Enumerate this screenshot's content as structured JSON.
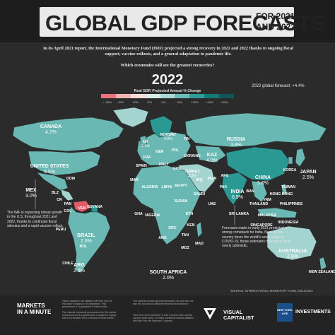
{
  "header": {
    "title": "GLOBAL GDP FORECASTS",
    "subtitle_line1": "FOR 2021",
    "subtitle_line2": "AND 2022"
  },
  "intro": "In its April 2021 report, the International Monetary Fund (IMF) projected a strong recovery in 2021 and 2022 thanks to ongoing fiscal support, vaccine rollouts, and a general adaptation to pandemic life.",
  "question": "Which economies will see the greatest recoveries?",
  "year": "2022",
  "global_forecast": "2022 global forecast: +4.4%",
  "legend": {
    "title": "Real GDP, Projected Annual % Change",
    "colors": [
      "#e8747d",
      "#f2b3b3",
      "#f7dcd8",
      "#d9ecea",
      "#a9d7d3",
      "#6cbdb8",
      "#2f9e99",
      "#157a76",
      "#0e5957"
    ],
    "labels": [
      "< -20%",
      "-15%",
      "-10%",
      "-5%",
      "0%",
      "+5%",
      "+10%",
      "+15%",
      "+20%"
    ]
  },
  "colors": {
    "ocean": "#2b2b2b",
    "land_default": "#6ab8b3",
    "land_strong": "#2a9893",
    "land_weak": "#a3d4d0",
    "negative": "#e45a66"
  },
  "countries": [
    {
      "name": "CANADA",
      "value": "4.7%",
      "size": "big"
    },
    {
      "name": "UNITED STATES",
      "value": "3.5%",
      "size": "big"
    },
    {
      "name": "MEX",
      "value": "3.0%",
      "size": "big"
    },
    {
      "name": "BRAZIL",
      "value": "2.6%",
      "size": "big"
    },
    {
      "name": "ARG",
      "value": "2.5%",
      "size": "big"
    },
    {
      "name": "RUSSIA",
      "value": "3.8%",
      "size": "big"
    },
    {
      "name": "KAZ",
      "value": "4.0%",
      "size": "big"
    },
    {
      "name": "CHINA",
      "value": "5.6%",
      "size": "big"
    },
    {
      "name": "INDIA",
      "value": "6.9%",
      "size": "big"
    },
    {
      "name": "JAPAN",
      "value": "2.5%",
      "size": "big"
    },
    {
      "name": "AUSTRALIA",
      "value": "2.8%",
      "size": "big"
    },
    {
      "name": "SOUTH AFRICA",
      "value": "2.0%",
      "size": "big"
    },
    {
      "name": "UK",
      "value": "5.1%",
      "size": "small"
    },
    {
      "name": "NORWAY",
      "value": "4.0%",
      "size": "small"
    },
    {
      "name": "FIN",
      "value": "",
      "size": "small"
    },
    {
      "name": "GER",
      "value": "",
      "size": "small"
    },
    {
      "name": "POL",
      "value": "",
      "size": "small"
    },
    {
      "name": "FRA",
      "value": "",
      "size": "small"
    },
    {
      "name": "UKRAINE",
      "value": "",
      "size": "small"
    },
    {
      "name": "ITALY",
      "value": "",
      "size": "small"
    },
    {
      "name": "SPAIN",
      "value": "",
      "size": "small"
    },
    {
      "name": "GRE",
      "value": "",
      "size": "small"
    },
    {
      "name": "TURKEY",
      "value": "3.3%",
      "size": "small"
    },
    {
      "name": "MAR",
      "value": "",
      "size": "small"
    },
    {
      "name": "ALGERIA",
      "value": "",
      "size": "small"
    },
    {
      "name": "LIBYA",
      "value": "",
      "size": "small"
    },
    {
      "name": "EGYPT",
      "value": "",
      "size": "small"
    },
    {
      "name": "IRAN",
      "value": "",
      "size": "small"
    },
    {
      "name": "IRQ",
      "value": "",
      "size": "small"
    },
    {
      "name": "SAUDI",
      "value": "",
      "size": "small"
    },
    {
      "name": "AFG",
      "value": "",
      "size": "small"
    },
    {
      "name": "PAK",
      "value": "",
      "size": "small"
    },
    {
      "name": "SUDAN",
      "value": "",
      "size": "small"
    },
    {
      "name": "NIGERIA",
      "value": "",
      "size": "small"
    },
    {
      "name": "GHA",
      "value": "",
      "size": "small"
    },
    {
      "name": "ETH",
      "value": "",
      "size": "small"
    },
    {
      "name": "KEN",
      "value": "",
      "size": "small"
    },
    {
      "name": "DRC",
      "value": "",
      "size": "small"
    },
    {
      "name": "ANG",
      "value": "",
      "size": "small"
    },
    {
      "name": "TAN",
      "value": "",
      "size": "small"
    },
    {
      "name": "MOZ",
      "value": "",
      "size": "small"
    },
    {
      "name": "MAD",
      "value": "",
      "size": "small"
    },
    {
      "name": "UAE",
      "value": "",
      "size": "small"
    },
    {
      "name": "SRI LANKA",
      "value": "",
      "size": "small"
    },
    {
      "name": "BAN",
      "value": "",
      "size": "small"
    },
    {
      "name": "THAILAND",
      "value": "",
      "size": "small"
    },
    {
      "name": "VNM",
      "value": "",
      "size": "small"
    },
    {
      "name": "KOREA",
      "value": "",
      "size": "small"
    },
    {
      "name": "TAIWAN",
      "value": "",
      "size": "small"
    },
    {
      "name": "HONG KONG",
      "value": "",
      "size": "small"
    },
    {
      "name": "PHILIPPINES",
      "value": "",
      "size": "small"
    },
    {
      "name": "MALAYSIA",
      "value": "",
      "size": "small"
    },
    {
      "name": "SINGAPORE",
      "value": "",
      "size": "small"
    },
    {
      "name": "INDONESIA",
      "value": "",
      "size": "small"
    },
    {
      "name": "NEW ZEALAND",
      "value": "",
      "size": "small"
    },
    {
      "name": "DOM",
      "value": "",
      "size": "small"
    },
    {
      "name": "BLZ",
      "value": "",
      "size": "small"
    },
    {
      "name": "CR",
      "value": "",
      "size": "small"
    },
    {
      "name": "PAN",
      "value": "",
      "size": "small"
    },
    {
      "name": "COL",
      "value": "",
      "size": "small"
    },
    {
      "name": "VEN",
      "value": "",
      "size": "small"
    },
    {
      "name": "GUYANA",
      "value": "",
      "size": "small"
    },
    {
      "name": "PERU",
      "value": "",
      "size": "small"
    },
    {
      "name": "BOL",
      "value": "",
      "size": "small"
    },
    {
      "name": "CHILE",
      "value": "",
      "size": "small"
    }
  ],
  "notes": {
    "us_note": "The IMF is expecting robust growth in the U.S. throughout 2021 and 2022, thanks to continued fiscal stimulus and a rapid vaccine rollout.",
    "india_note": "Forecasts made in early 2021 predicted a strong comeback for India. Now, as the country faces the world's worst surge of COVID-19, these estimates may prove to be overly optimistic."
  },
  "source": "SOURCE: INTERNATIONAL MONETARY FUND, 04/14/2021",
  "footer": {
    "mim_line1": "MARKETS",
    "mim_line2": "IN A MINUTE",
    "disclaimer_1": "Visual Capitalist is not affiliated with New York Life Insurance Company or its subsidiaries. Past performance is no guarantee of future results.",
    "disclaimer_2": "This material represents an assessment of the market environment as of a specific date, is subject to change and is not intended to be a forecast of future events.",
    "disclaimer_3": "This material contains general information only and does not take into account an individual's financial circumstances.",
    "disclaimer_4": "\"New York Life Investments\" is both a service mark, and the common trade name, of certain investment advisors affiliated with New York Life Insurance Company.",
    "vc_line1": "VISUAL",
    "vc_line2": "CAPITALIST",
    "nyl_badge": "NEW YORK LIFE",
    "nyl_investments": "INVESTMENTS"
  }
}
